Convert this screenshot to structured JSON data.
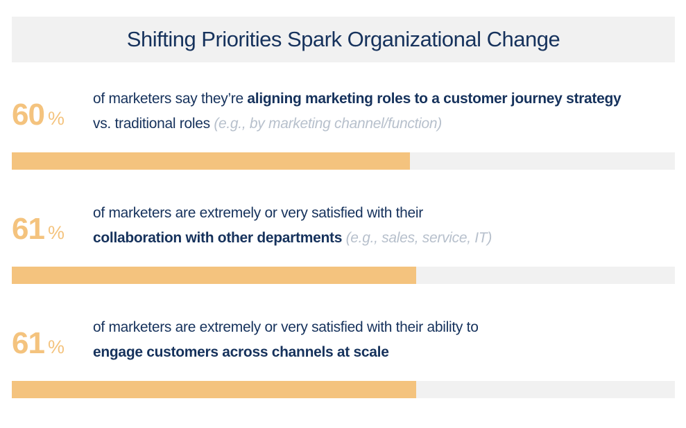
{
  "title": "Shifting Priorities Spark Organizational Change",
  "percent_symbol": "%",
  "chart_data": {
    "type": "bar",
    "title": "Shifting Priorities Spark Organizational Change",
    "orientation": "horizontal",
    "xlim": [
      0,
      100
    ],
    "colors": {
      "fill": "#f4c37e",
      "track": "#f1f1f1",
      "text": "#16325c",
      "note": "#b7c0cc"
    },
    "items": [
      {
        "value": 60,
        "value_label": "60",
        "line1": [
          {
            "text": "of marketers say they’re ",
            "style": "normal"
          },
          {
            "text": "aligning marketing roles to a customer journey strategy",
            "style": "bold"
          }
        ],
        "line2": [
          {
            "text": "vs. traditional roles ",
            "style": "normal"
          },
          {
            "text": "(e.g., by marketing channel/function)",
            "style": "note"
          }
        ]
      },
      {
        "value": 61,
        "value_label": "61",
        "line1": [
          {
            "text": "of marketers are extremely or very satisfied with their",
            "style": "normal"
          }
        ],
        "line2": [
          {
            "text": "collaboration with other departments",
            "style": "bold"
          },
          {
            "text": " (e.g., sales, service, IT)",
            "style": "note"
          }
        ]
      },
      {
        "value": 61,
        "value_label": "61",
        "line1": [
          {
            "text": "of marketers are extremely or very satisfied with their ability to",
            "style": "normal"
          }
        ],
        "line2": [
          {
            "text": "engage customers across channels at scale",
            "style": "bold"
          }
        ]
      }
    ]
  }
}
